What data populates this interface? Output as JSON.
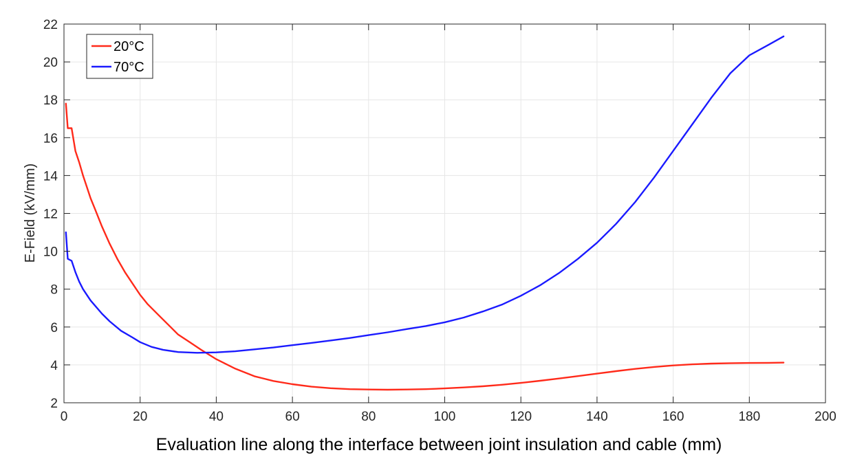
{
  "chart_data": {
    "type": "line",
    "xlabel": "Evaluation line along the interface between joint insulation and cable (mm)",
    "ylabel": "E-Field (kV/mm)",
    "xlim": [
      0,
      200
    ],
    "ylim": [
      2,
      22
    ],
    "xticks": [
      0,
      20,
      40,
      60,
      80,
      100,
      120,
      140,
      160,
      180,
      200
    ],
    "yticks": [
      2,
      4,
      6,
      8,
      10,
      12,
      14,
      16,
      18,
      20,
      22
    ],
    "grid": true,
    "legend_position": "top-left",
    "series": [
      {
        "name": "20°C",
        "color": "#ff2a1a",
        "points": [
          [
            0.5,
            17.8
          ],
          [
            1,
            16.5
          ],
          [
            2,
            16.5
          ],
          [
            3,
            15.3
          ],
          [
            4,
            14.7
          ],
          [
            5,
            14.0
          ],
          [
            6,
            13.4
          ],
          [
            7,
            12.8
          ],
          [
            8,
            12.3
          ],
          [
            10,
            11.3
          ],
          [
            12,
            10.4
          ],
          [
            14,
            9.6
          ],
          [
            16,
            8.9
          ],
          [
            18,
            8.3
          ],
          [
            20,
            7.7
          ],
          [
            22,
            7.2
          ],
          [
            25,
            6.6
          ],
          [
            28,
            6.0
          ],
          [
            30,
            5.6
          ],
          [
            33,
            5.2
          ],
          [
            36,
            4.8
          ],
          [
            40,
            4.3
          ],
          [
            45,
            3.8
          ],
          [
            50,
            3.4
          ],
          [
            55,
            3.15
          ],
          [
            60,
            2.98
          ],
          [
            65,
            2.85
          ],
          [
            70,
            2.77
          ],
          [
            75,
            2.72
          ],
          [
            80,
            2.7
          ],
          [
            85,
            2.69
          ],
          [
            90,
            2.7
          ],
          [
            95,
            2.72
          ],
          [
            100,
            2.76
          ],
          [
            105,
            2.81
          ],
          [
            110,
            2.87
          ],
          [
            115,
            2.95
          ],
          [
            120,
            3.05
          ],
          [
            125,
            3.16
          ],
          [
            130,
            3.28
          ],
          [
            135,
            3.41
          ],
          [
            140,
            3.54
          ],
          [
            145,
            3.67
          ],
          [
            150,
            3.79
          ],
          [
            155,
            3.89
          ],
          [
            160,
            3.97
          ],
          [
            165,
            4.03
          ],
          [
            170,
            4.07
          ],
          [
            175,
            4.09
          ],
          [
            180,
            4.1
          ],
          [
            185,
            4.11
          ],
          [
            189,
            4.12
          ]
        ]
      },
      {
        "name": "70°C",
        "color": "#1a1aff",
        "points": [
          [
            0.5,
            11.0
          ],
          [
            1,
            9.6
          ],
          [
            2,
            9.5
          ],
          [
            3,
            8.9
          ],
          [
            4,
            8.4
          ],
          [
            5,
            8.0
          ],
          [
            7,
            7.4
          ],
          [
            10,
            6.7
          ],
          [
            12,
            6.3
          ],
          [
            15,
            5.8
          ],
          [
            18,
            5.45
          ],
          [
            20,
            5.2
          ],
          [
            23,
            4.95
          ],
          [
            26,
            4.8
          ],
          [
            30,
            4.68
          ],
          [
            35,
            4.64
          ],
          [
            40,
            4.66
          ],
          [
            45,
            4.72
          ],
          [
            50,
            4.82
          ],
          [
            55,
            4.92
          ],
          [
            60,
            5.04
          ],
          [
            65,
            5.16
          ],
          [
            70,
            5.29
          ],
          [
            75,
            5.42
          ],
          [
            80,
            5.57
          ],
          [
            85,
            5.72
          ],
          [
            90,
            5.89
          ],
          [
            95,
            6.05
          ],
          [
            100,
            6.25
          ],
          [
            105,
            6.5
          ],
          [
            110,
            6.82
          ],
          [
            115,
            7.18
          ],
          [
            120,
            7.65
          ],
          [
            125,
            8.2
          ],
          [
            130,
            8.85
          ],
          [
            135,
            9.6
          ],
          [
            140,
            10.45
          ],
          [
            145,
            11.45
          ],
          [
            150,
            12.6
          ],
          [
            155,
            13.9
          ],
          [
            160,
            15.3
          ],
          [
            165,
            16.7
          ],
          [
            170,
            18.1
          ],
          [
            175,
            19.4
          ],
          [
            180,
            20.35
          ],
          [
            185,
            20.9
          ],
          [
            189,
            21.35
          ]
        ]
      }
    ]
  }
}
